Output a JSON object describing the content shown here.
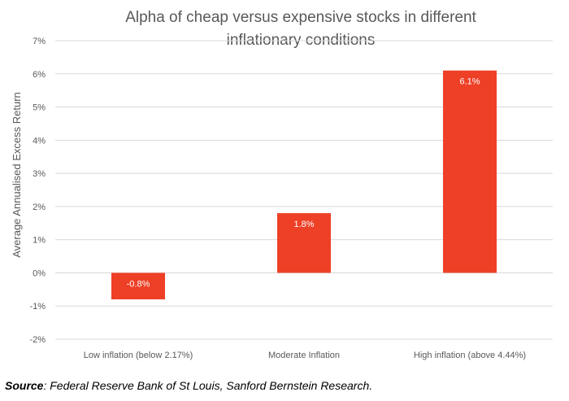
{
  "chart_data": {
    "type": "bar",
    "title_lines": [
      "Alpha of cheap versus expensive stocks in different",
      "inflationary conditions"
    ],
    "categories": [
      "Low inflation (below 2.17%)",
      "Moderate Inflation",
      "High inflation (above 4.44%)"
    ],
    "values": [
      -0.8,
      1.8,
      6.1
    ],
    "data_labels": [
      "-0.8%",
      "1.8%",
      "6.1%"
    ],
    "ylabel": "Average Annualised Excess Return",
    "ylim": [
      -2,
      7
    ],
    "y_ticks": [
      -2,
      -1,
      0,
      1,
      2,
      3,
      4,
      5,
      6,
      7
    ],
    "y_tick_labels": [
      "-2%",
      "-1%",
      "0%",
      "1%",
      "2%",
      "3%",
      "4%",
      "5%",
      "6%",
      "7%"
    ],
    "grid": true,
    "legend": "none",
    "bar_color": "#EE4026",
    "grid_color": "#D9D9D9",
    "axis_text_color": "#595959"
  },
  "source": {
    "label": "Source",
    "text": ": Federal Reserve Bank of St Louis, Sanford Bernstein Research."
  }
}
